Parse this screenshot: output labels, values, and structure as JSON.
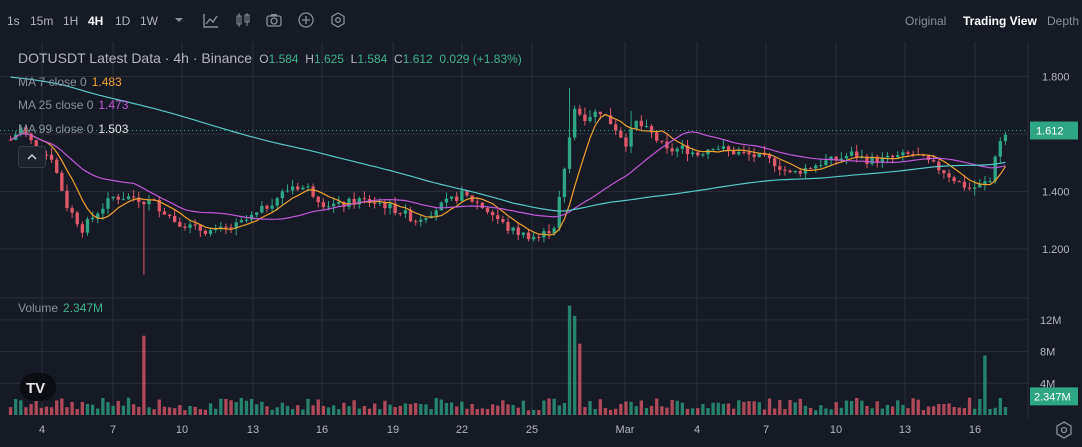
{
  "toolbar": {
    "timeframes": [
      {
        "label": "1s",
        "active": false
      },
      {
        "label": "15m",
        "active": false
      },
      {
        "label": "1H",
        "active": false
      },
      {
        "label": "4H",
        "active": true
      },
      {
        "label": "1D",
        "active": false
      },
      {
        "label": "1W",
        "active": false
      }
    ],
    "tools": [
      "chevron-down-icon",
      "indicator-icon",
      "candlestick-type-icon",
      "camera-icon",
      "plus-circle-icon",
      "settings-hex-icon"
    ],
    "views": [
      {
        "label": "Original",
        "active": false
      },
      {
        "label": "Trading View",
        "active": true
      },
      {
        "label": "Depth",
        "active": false
      }
    ]
  },
  "legend": {
    "symbol": "DOTUSDT Latest Data",
    "interval": "4h",
    "exchange": "Binance",
    "o_label": "O",
    "o": "1.584",
    "h_label": "H",
    "h": "1.625",
    "l_label": "L",
    "l": "1.584",
    "c_label": "C",
    "c": "1.612",
    "change": "0.029 (+1.83%)",
    "ma": [
      {
        "label": "MA 7 close 0",
        "value": "1.483",
        "color": "#f0a030"
      },
      {
        "label": "MA 25 close 0",
        "value": "1.473",
        "color": "#c05ad8"
      },
      {
        "label": "MA 99 close 0",
        "value": "1.503",
        "color": "#5ac8c8"
      }
    ]
  },
  "volume_legend": {
    "label": "Volume",
    "value": "2.347M"
  },
  "colors": {
    "up": "#2ea683",
    "down": "#e0596a",
    "grid": "#2a2e39",
    "bg": "#161a25"
  },
  "chart_data": {
    "type": "candlestick",
    "price_axis": {
      "ticks": [
        "1.800",
        "1.600",
        "1.400",
        "1.200"
      ],
      "ylim": [
        1.05,
        1.92
      ]
    },
    "volume_axis": {
      "ticks": [
        "12M",
        "8M",
        "4M"
      ],
      "ylim": [
        0,
        14
      ]
    },
    "x_ticks": [
      "4",
      "7",
      "10",
      "13",
      "16",
      "19",
      "22",
      "25",
      "Mar",
      "4",
      "7",
      "10",
      "13",
      "16"
    ],
    "last_price": "1.612",
    "last_volume": "2.347M",
    "anchors": [
      [
        0,
        1.58
      ],
      [
        2,
        1.62
      ],
      [
        5,
        1.55
      ],
      [
        8,
        1.52
      ],
      [
        11,
        1.35
      ],
      [
        14,
        1.27
      ],
      [
        17,
        1.33
      ],
      [
        20,
        1.38
      ],
      [
        24,
        1.38
      ],
      [
        28,
        1.36
      ],
      [
        32,
        1.3
      ],
      [
        36,
        1.27
      ],
      [
        40,
        1.26
      ],
      [
        44,
        1.28
      ],
      [
        48,
        1.32
      ],
      [
        52,
        1.38
      ],
      [
        55,
        1.42
      ],
      [
        58,
        1.41
      ],
      [
        61,
        1.36
      ],
      [
        64,
        1.35
      ],
      [
        68,
        1.37
      ],
      [
        72,
        1.36
      ],
      [
        76,
        1.33
      ],
      [
        79,
        1.3
      ],
      [
        82,
        1.33
      ],
      [
        85,
        1.36
      ],
      [
        88,
        1.39
      ],
      [
        91,
        1.36
      ],
      [
        94,
        1.32
      ],
      [
        97,
        1.27
      ],
      [
        100,
        1.25
      ],
      [
        103,
        1.24
      ],
      [
        106,
        1.28
      ],
      [
        108,
        1.47
      ],
      [
        110,
        1.7
      ],
      [
        112,
        1.66
      ],
      [
        115,
        1.68
      ],
      [
        118,
        1.62
      ],
      [
        120,
        1.57
      ],
      [
        122,
        1.64
      ],
      [
        125,
        1.6
      ],
      [
        128,
        1.54
      ],
      [
        131,
        1.55
      ],
      [
        134,
        1.53
      ],
      [
        137,
        1.56
      ],
      [
        140,
        1.54
      ],
      [
        143,
        1.53
      ],
      [
        146,
        1.52
      ],
      [
        149,
        1.5
      ],
      [
        152,
        1.46
      ],
      [
        155,
        1.48
      ],
      [
        158,
        1.5
      ],
      [
        161,
        1.51
      ],
      [
        164,
        1.53
      ],
      [
        167,
        1.51
      ],
      [
        170,
        1.51
      ],
      [
        173,
        1.52
      ],
      [
        176,
        1.53
      ],
      [
        179,
        1.5
      ],
      [
        182,
        1.47
      ],
      [
        185,
        1.43
      ],
      [
        187,
        1.41
      ],
      [
        189,
        1.42
      ],
      [
        191,
        1.44
      ],
      [
        193,
        1.58
      ],
      [
        194,
        1.612
      ]
    ],
    "wick_extremes": [
      [
        26,
        1.11,
        "low"
      ],
      [
        109,
        1.76,
        "high"
      ],
      [
        121,
        1.68,
        "high"
      ]
    ],
    "volume_spikes": [
      [
        26,
        10.0
      ],
      [
        109,
        13.8
      ],
      [
        110,
        12.5
      ],
      [
        111,
        9.0
      ],
      [
        190,
        7.5
      ]
    ],
    "moving_averages": [
      "MA 7",
      "MA 25",
      "MA 99"
    ]
  }
}
